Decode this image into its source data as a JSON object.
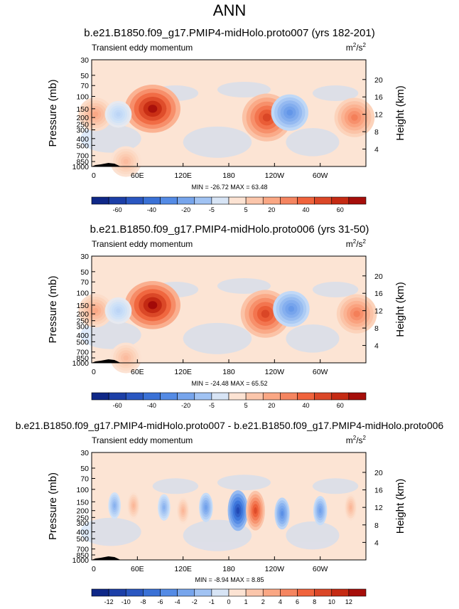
{
  "page_title": "ANN",
  "colors": {
    "red_strong": "#a50f15",
    "red": "#de2d26",
    "red_light": "#fc9272",
    "blue_strong": "#08306b",
    "blue": "#2171b5",
    "blue_light": "#9ecae1",
    "background_neutral": "#fde0d0"
  },
  "chart_data": [
    {
      "type": "heatmap",
      "title": "b.e21.B1850.f09_g17.PMIP4-midHolo.proto007 (yrs 182-201)",
      "subtitle_left": "Transient eddy momentum",
      "units_prefix": "m",
      "units_exp1": "2",
      "units_mid": "/s",
      "units_exp2": "2",
      "ylabel": "Pressure (mb)",
      "ylabel_right": "Height (km)",
      "x_ticks": [
        "0",
        "60E",
        "120E",
        "180",
        "120W",
        "60W"
      ],
      "y_ticks": [
        "30",
        "50",
        "70",
        "100",
        "150",
        "200",
        "250",
        "300",
        "400",
        "500",
        "700",
        "850",
        "1000"
      ],
      "y_right_ticks": [
        "20",
        "16",
        "12",
        "8",
        "4"
      ],
      "stats": "MIN = -26.72  MAX = 63.48",
      "min": -26.72,
      "max": 63.48,
      "colorbar_labels": [
        "-60",
        "-40",
        "-20",
        "-5",
        "5",
        "20",
        "40",
        "60"
      ],
      "centers": [
        {
          "lon": 80,
          "p": 150,
          "value": 60
        },
        {
          "lon": 230,
          "p": 200,
          "value": 45
        },
        {
          "lon": 260,
          "p": 170,
          "value": -25
        },
        {
          "lon": 345,
          "p": 200,
          "value": 30
        },
        {
          "lon": 5,
          "p": 180,
          "value": 20
        },
        {
          "lon": 35,
          "p": 180,
          "value": -8
        },
        {
          "lon": 45,
          "p": 850,
          "value": 15
        }
      ]
    },
    {
      "type": "heatmap",
      "title": "b.e21.B1850.f09_g17.PMIP4-midHolo.proto006 (yrs 31-50)",
      "subtitle_left": "Transient eddy momentum",
      "units_prefix": "m",
      "units_exp1": "2",
      "units_mid": "/s",
      "units_exp2": "2",
      "ylabel": "Pressure (mb)",
      "ylabel_right": "Height (km)",
      "x_ticks": [
        "0",
        "60E",
        "120E",
        "180",
        "120W",
        "60W"
      ],
      "y_ticks": [
        "30",
        "50",
        "70",
        "100",
        "150",
        "200",
        "250",
        "300",
        "400",
        "500",
        "700",
        "850",
        "1000"
      ],
      "y_right_ticks": [
        "20",
        "16",
        "12",
        "8",
        "4"
      ],
      "stats": "MIN = -24.48  MAX = 65.52",
      "min": -24.48,
      "max": 65.52,
      "colorbar_labels": [
        "-60",
        "-40",
        "-20",
        "-5",
        "5",
        "20",
        "40",
        "60"
      ],
      "centers": [
        {
          "lon": 80,
          "p": 150,
          "value": 62
        },
        {
          "lon": 228,
          "p": 200,
          "value": 45
        },
        {
          "lon": 262,
          "p": 170,
          "value": -24
        },
        {
          "lon": 348,
          "p": 200,
          "value": 30
        },
        {
          "lon": 5,
          "p": 180,
          "value": 20
        },
        {
          "lon": 35,
          "p": 180,
          "value": -8
        },
        {
          "lon": 45,
          "p": 850,
          "value": 15
        }
      ]
    },
    {
      "type": "heatmap",
      "title": "b.e21.B1850.f09_g17.PMIP4-midHolo.proto007 - b.e21.B1850.f09_g17.PMIP4-midHolo.proto006",
      "subtitle_left": "Transient eddy momentum",
      "units_prefix": "m",
      "units_exp1": "2",
      "units_mid": "/s",
      "units_exp2": "2",
      "ylabel": "Pressure (mb)",
      "ylabel_right": "Height (km)",
      "x_ticks": [
        "0",
        "60E",
        "120E",
        "180",
        "120W",
        "60W"
      ],
      "y_ticks": [
        "30",
        "50",
        "70",
        "100",
        "150",
        "200",
        "250",
        "300",
        "400",
        "500",
        "700",
        "850",
        "1000"
      ],
      "y_right_ticks": [
        "20",
        "16",
        "12",
        "8",
        "4"
      ],
      "stats": "MIN = -8.94  MAX =  8.85",
      "min": -8.94,
      "max": 8.85,
      "colorbar_labels": [
        "-12",
        "-10",
        "-8",
        "-6",
        "-4",
        "-2",
        "-1",
        "0",
        "1",
        "2",
        "4",
        "6",
        "8",
        "10",
        "12"
      ],
      "centers": [
        {
          "lon": 192,
          "p": 200,
          "value": -9
        },
        {
          "lon": 215,
          "p": 200,
          "value": 8
        },
        {
          "lon": 150,
          "p": 180,
          "value": -4
        },
        {
          "lon": 250,
          "p": 220,
          "value": -5
        },
        {
          "lon": 30,
          "p": 170,
          "value": -3
        },
        {
          "lon": 55,
          "p": 170,
          "value": 3
        },
        {
          "lon": 95,
          "p": 180,
          "value": -3
        },
        {
          "lon": 120,
          "p": 200,
          "value": 3
        },
        {
          "lon": 300,
          "p": 200,
          "value": -4
        },
        {
          "lon": 340,
          "p": 180,
          "value": 3
        }
      ]
    }
  ]
}
